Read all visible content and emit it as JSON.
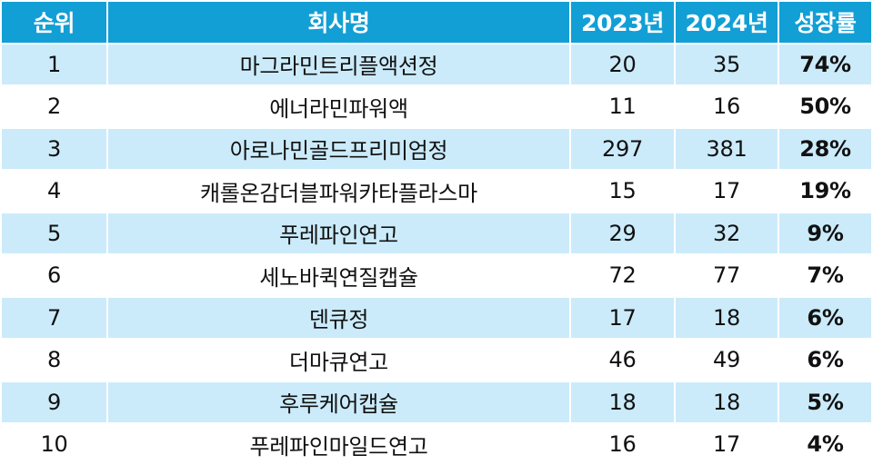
{
  "table": {
    "columns": [
      "순위",
      "회사명",
      "2023년",
      "2024년",
      "성장률"
    ],
    "rows": [
      {
        "rank": "1",
        "company": "마그라민트리플액션정",
        "y2023": "20",
        "y2024": "35",
        "growth": "74%"
      },
      {
        "rank": "2",
        "company": "에너라민파워액",
        "y2023": "11",
        "y2024": "16",
        "growth": "50%"
      },
      {
        "rank": "3",
        "company": "아로나민골드프리미엄정",
        "y2023": "297",
        "y2024": "381",
        "growth": "28%"
      },
      {
        "rank": "4",
        "company": "캐롤온감더블파워카타플라스마",
        "y2023": "15",
        "y2024": "17",
        "growth": "19%"
      },
      {
        "rank": "5",
        "company": "푸레파인연고",
        "y2023": "29",
        "y2024": "32",
        "growth": "9%"
      },
      {
        "rank": "6",
        "company": "세노바퀵연질캡슐",
        "y2023": "72",
        "y2024": "77",
        "growth": "7%"
      },
      {
        "rank": "7",
        "company": "덴큐정",
        "y2023": "17",
        "y2024": "18",
        "growth": "6%"
      },
      {
        "rank": "8",
        "company": "더마큐연고",
        "y2023": "46",
        "y2024": "49",
        "growth": "6%"
      },
      {
        "rank": "9",
        "company": "후루케어캡슐",
        "y2023": "18",
        "y2024": "18",
        "growth": "5%"
      },
      {
        "rank": "10",
        "company": "푸레파인마일드연고",
        "y2023": "16",
        "y2024": "17",
        "growth": "4%"
      }
    ]
  },
  "colors": {
    "header_bg": "#129fd6",
    "header_text": "#ffffff",
    "shaded_row_bg": "#cbebfa",
    "plain_row_bg": "#ffffff",
    "text": "#111111"
  }
}
